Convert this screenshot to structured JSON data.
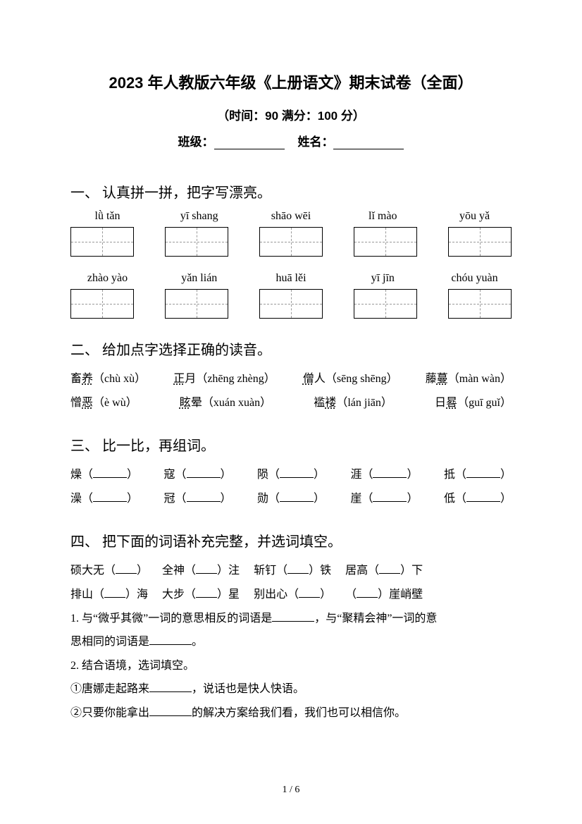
{
  "title": "2023 年人教版六年级《上册语文》期末试卷（全面）",
  "subtitle": "（时间：90   满分：100 分）",
  "info": {
    "class_label": "班级：",
    "name_label": "姓名："
  },
  "section1": {
    "heading": "一、 认真拼一拼，把字写漂亮。",
    "row1": [
      "lǜ tǎn",
      "yī shang",
      "shāo wēi",
      "lǐ mào",
      "yōu yǎ"
    ],
    "row2": [
      "zhào yào",
      "yǎn lián",
      "huā lěi",
      "yī jīn",
      "chóu yuàn"
    ]
  },
  "section2": {
    "heading": "二、 给加点字选择正确的读音。",
    "line1": [
      {
        "pre": "畜",
        "dot": "养",
        "py": "（chù xù）"
      },
      {
        "pre": "",
        "dot": "正",
        "post": "月",
        "py": "（zhēng zhèng）"
      },
      {
        "pre": "",
        "dot": "僧",
        "post": "人",
        "py": "（sēng shēng）"
      },
      {
        "pre": "藤",
        "dot": "蔓",
        "py": "（màn wàn）"
      }
    ],
    "line2": [
      {
        "pre": "憎",
        "dot": "恶",
        "py": "（è  wù）"
      },
      {
        "pre": "",
        "dot": "眩",
        "post": "晕",
        "py": "（xuán  xuàn）"
      },
      {
        "pre": "褴",
        "dot": "褛",
        "py": "（lán  jiān）"
      },
      {
        "pre": "日",
        "dot": "晷",
        "py": "（guī  guǐ）"
      }
    ]
  },
  "section3": {
    "heading": "三、 比一比，再组词。",
    "row1": [
      "燥",
      "寇",
      "陨",
      "涯",
      "抵"
    ],
    "row2": [
      "澡",
      "冠",
      "勋",
      "崖",
      "低"
    ]
  },
  "section4": {
    "heading": "四、 把下面的词语补充完整，并选词填空。",
    "line1": [
      "硕大无（",
      "）",
      "全神（",
      "）注",
      "斩钉（",
      "）铁",
      "居高（",
      "）下"
    ],
    "line2": [
      "排山（",
      "）海",
      "大步（",
      "）星",
      "别出心（",
      "）",
      "（",
      "）崖峭壁"
    ],
    "q1a": "1. 与“微乎其微”一词的意思相反的词语是",
    "q1b": "，与“聚精会神”一词的意",
    "q1c": "思相同的词语是",
    "q1d": "。",
    "q2": "2. 结合语境，选词填空。",
    "q2a_pre": "①唐娜走起路来",
    "q2a_post": "，说话也是快人快语。",
    "q2b_pre": "②只要你能拿出",
    "q2b_post": "的解决方案给我们看，我们也可以相信你。"
  },
  "footer": "1 / 6",
  "colors": {
    "text": "#000000",
    "bg": "#ffffff",
    "dash": "#999999"
  }
}
